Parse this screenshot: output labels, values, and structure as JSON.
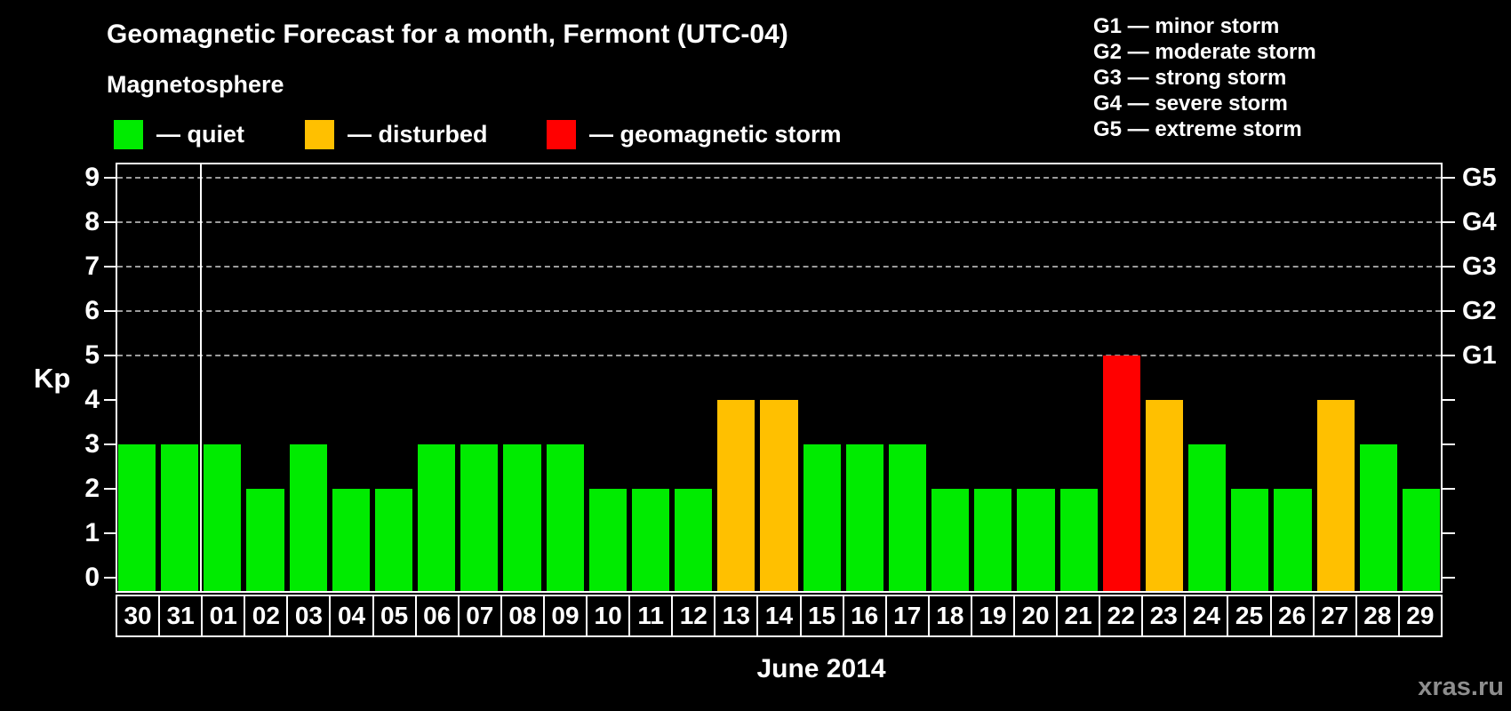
{
  "title": "Geomagnetic Forecast for a month, Fermont (UTC-04)",
  "subtitle": "Magnetosphere",
  "legend": {
    "items": [
      {
        "key": "quiet",
        "label": "— quiet",
        "color": "#00EB00"
      },
      {
        "key": "disturbed",
        "label": "— disturbed",
        "color": "#FFC000"
      },
      {
        "key": "storm",
        "label": "— geomagnetic storm",
        "color": "#FF0000"
      }
    ]
  },
  "storm_scale_legend": [
    "G1 — minor storm",
    "G2 — moderate storm",
    "G3 — strong storm",
    "G4 — severe storm",
    "G5 — extreme storm"
  ],
  "watermark": "xras.ru",
  "chart_data": {
    "type": "bar",
    "title": "Geomagnetic Forecast for a month, Fermont (UTC-04)",
    "xlabel": "June 2014",
    "ylabel": "Kp",
    "ylim": [
      -0.35,
      9.35
    ],
    "yticks": [
      0,
      1,
      2,
      3,
      4,
      5,
      6,
      7,
      8,
      9
    ],
    "gridlines_at": [
      5,
      6,
      7,
      8,
      9
    ],
    "grid": "dashed horizontal at Kp 5-9",
    "legend_position": "top",
    "right_axis_labels": [
      {
        "kp": 5,
        "label": "G1"
      },
      {
        "kp": 6,
        "label": "G2"
      },
      {
        "kp": 7,
        "label": "G3"
      },
      {
        "kp": 8,
        "label": "G4"
      },
      {
        "kp": 9,
        "label": "G5"
      }
    ],
    "month_separator_after_index": 1,
    "categories": [
      "30",
      "31",
      "01",
      "02",
      "03",
      "04",
      "05",
      "06",
      "07",
      "08",
      "09",
      "10",
      "11",
      "12",
      "13",
      "14",
      "15",
      "16",
      "17",
      "18",
      "19",
      "20",
      "21",
      "22",
      "23",
      "24",
      "25",
      "26",
      "27",
      "28",
      "29"
    ],
    "values": [
      3,
      3,
      3,
      2,
      3,
      2,
      2,
      3,
      3,
      3,
      3,
      2,
      2,
      2,
      4,
      4,
      3,
      3,
      3,
      2,
      2,
      2,
      2,
      5,
      4,
      3,
      2,
      2,
      4,
      3,
      2
    ],
    "statuses": [
      "quiet",
      "quiet",
      "quiet",
      "quiet",
      "quiet",
      "quiet",
      "quiet",
      "quiet",
      "quiet",
      "quiet",
      "quiet",
      "quiet",
      "quiet",
      "quiet",
      "disturbed",
      "disturbed",
      "quiet",
      "quiet",
      "quiet",
      "quiet",
      "quiet",
      "quiet",
      "quiet",
      "storm",
      "disturbed",
      "quiet",
      "quiet",
      "quiet",
      "disturbed",
      "quiet",
      "quiet"
    ],
    "colors": {
      "quiet": "#00EB00",
      "disturbed": "#FFC000",
      "storm": "#FF0000"
    }
  }
}
